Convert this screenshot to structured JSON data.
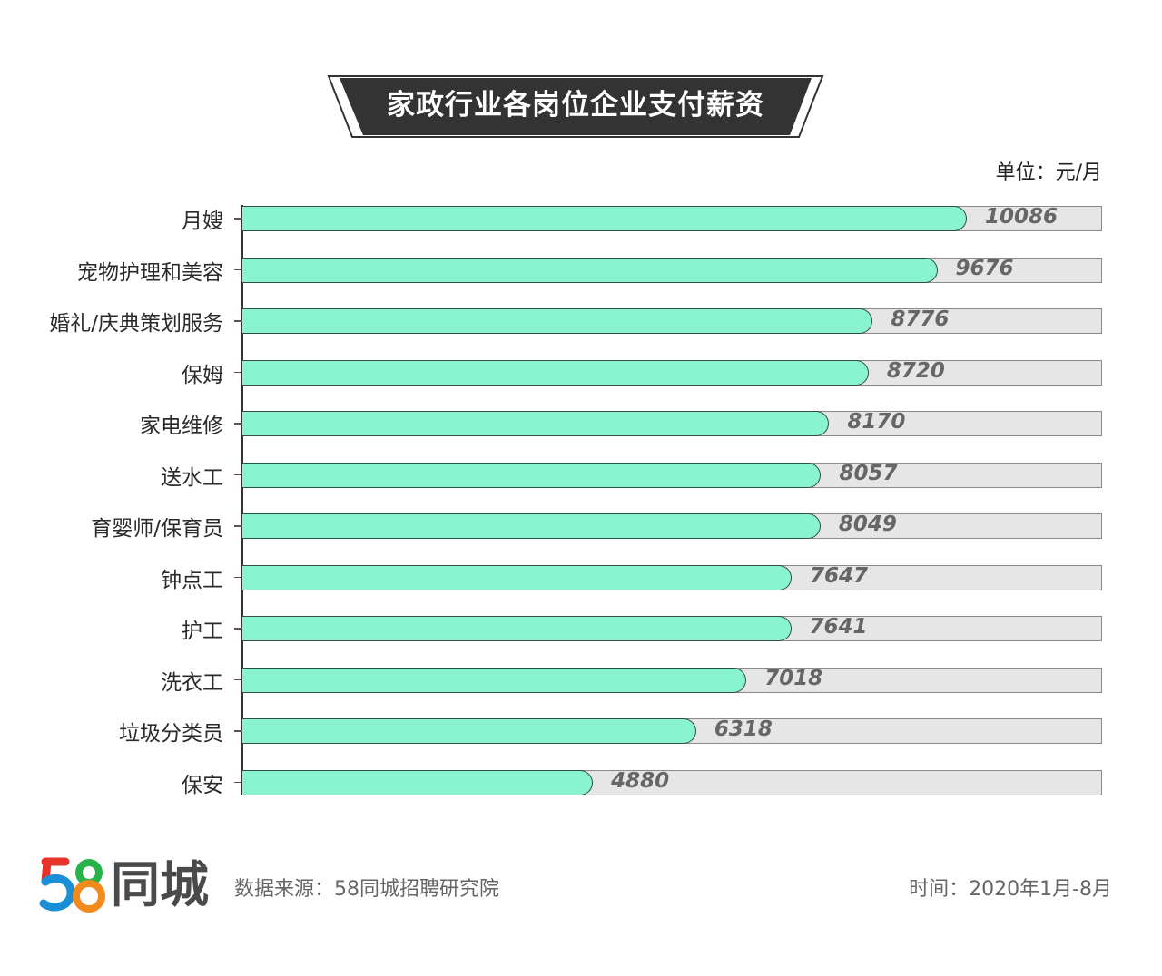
{
  "title": "家政行业各岗位企业支付薪资",
  "unit_label": "单位：元/月",
  "colors": {
    "bar_fill": "#8af4d0",
    "bar_border": "#2f4f45",
    "track": "#e6e6e6",
    "value_text": "#666666",
    "banner": "#333333"
  },
  "footer": {
    "logo_number": "58",
    "logo_text": "同城",
    "source": "数据来源：58同城招聘研究院",
    "period": "时间：2020年1月-8月"
  },
  "chart_data": {
    "type": "bar",
    "orientation": "horizontal",
    "title": "家政行业各岗位企业支付薪资",
    "xlabel": "",
    "ylabel": "",
    "unit": "元/月",
    "categories": [
      "月嫂",
      "宠物护理和美容",
      "婚礼/庆典策划服务",
      "保姆",
      "家电维修",
      "送水工",
      "育婴师/保育员",
      "钟点工",
      "护工",
      "洗衣工",
      "垃圾分类员",
      "保安"
    ],
    "values": [
      10086,
      9676,
      8776,
      8720,
      8170,
      8057,
      8049,
      7647,
      7641,
      7018,
      6318,
      4880
    ],
    "value_labels": [
      "10086",
      "9676",
      "8776",
      "8720",
      "8170",
      "8057",
      "8049",
      "7647",
      "7641",
      "7018",
      "6318",
      "4880"
    ],
    "xlim": [
      0,
      12000
    ],
    "grid": false,
    "legend": null,
    "data_labels": true
  }
}
